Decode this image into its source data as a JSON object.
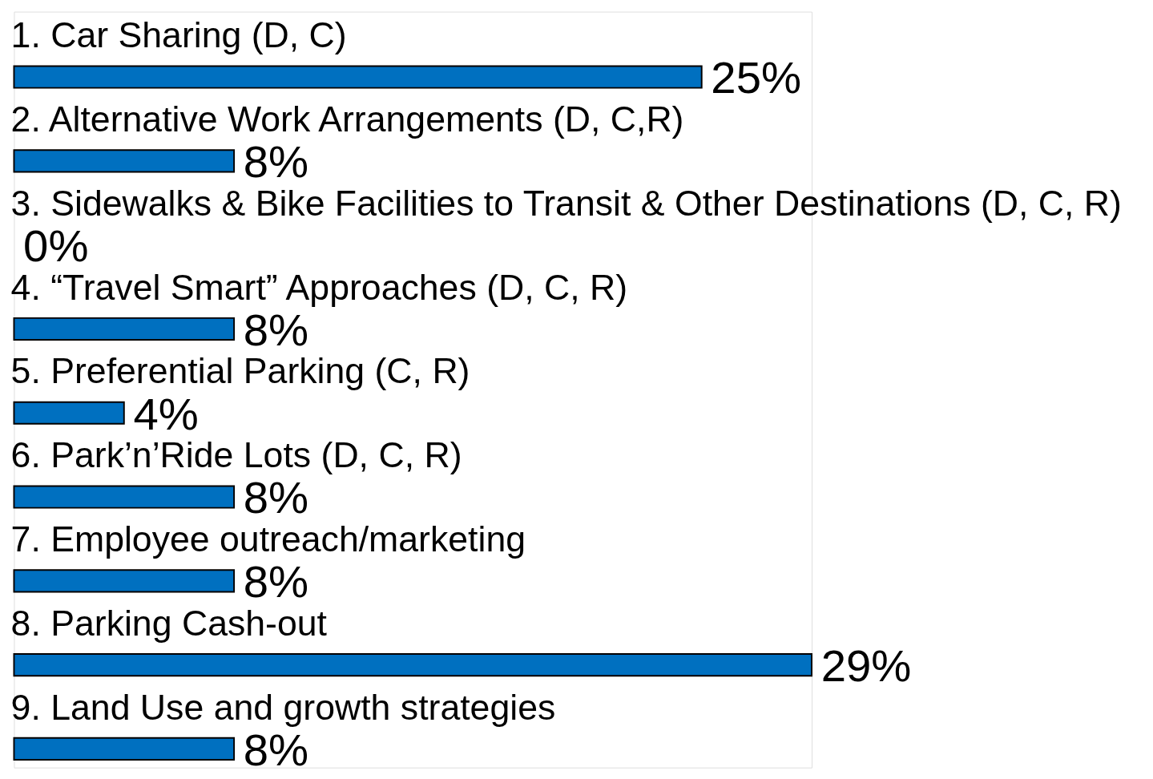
{
  "chart_data": {
    "type": "bar",
    "orientation": "horizontal",
    "categories": [
      "1.    Car Sharing (D, C)",
      "2.    Alternative Work Arrangements (D, C,R)",
      "3.    Sidewalks & Bike Facilities to Transit & Other Destinations (D, C, R)",
      "4.    “Travel Smart” Approaches (D, C, R)",
      "5.    Preferential Parking (C, R)",
      "6.    Park’n’Ride Lots (D, C, R)",
      "7.    Employee outreach/marketing",
      "8.    Parking Cash-out",
      "9.    Land Use and growth strategies"
    ],
    "values": [
      25,
      8,
      0,
      8,
      4,
      8,
      8,
      29,
      8
    ],
    "value_labels": [
      "25%",
      "8%",
      "0%",
      "8%",
      "4%",
      "8%",
      "8%",
      "29%",
      "8%"
    ],
    "color": "#0070c0"
  }
}
